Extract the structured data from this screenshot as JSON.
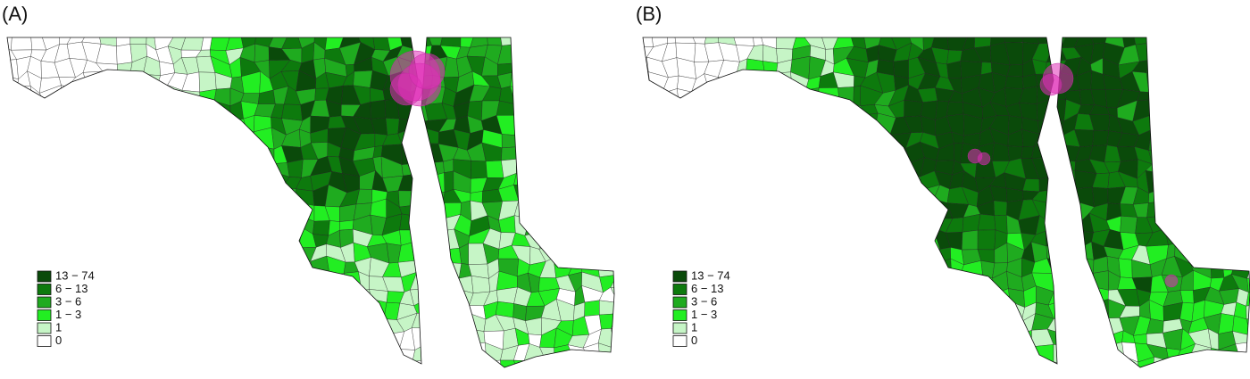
{
  "panels": [
    {
      "label": "(A)",
      "legend": [
        {
          "label": "13 − 74",
          "color": "#0a4a0a"
        },
        {
          "label": "6 − 13",
          "color": "#0d7a0d"
        },
        {
          "label": "3 − 6",
          "color": "#1fab1f"
        },
        {
          "label": "1 − 3",
          "color": "#22ee22"
        },
        {
          "label": "1",
          "color": "#c6f5c6"
        },
        {
          "label": "0",
          "color": "#ffffff"
        }
      ]
    },
    {
      "label": "(B)",
      "legend": [
        {
          "label": "13 − 74",
          "color": "#0a4a0a"
        },
        {
          "label": "6 − 13",
          "color": "#0d7a0d"
        },
        {
          "label": "3 − 6",
          "color": "#1fab1f"
        },
        {
          "label": "1 − 3",
          "color": "#22ee22"
        },
        {
          "label": "1",
          "color": "#c6f5c6"
        },
        {
          "label": "0",
          "color": "#ffffff"
        }
      ]
    }
  ]
}
